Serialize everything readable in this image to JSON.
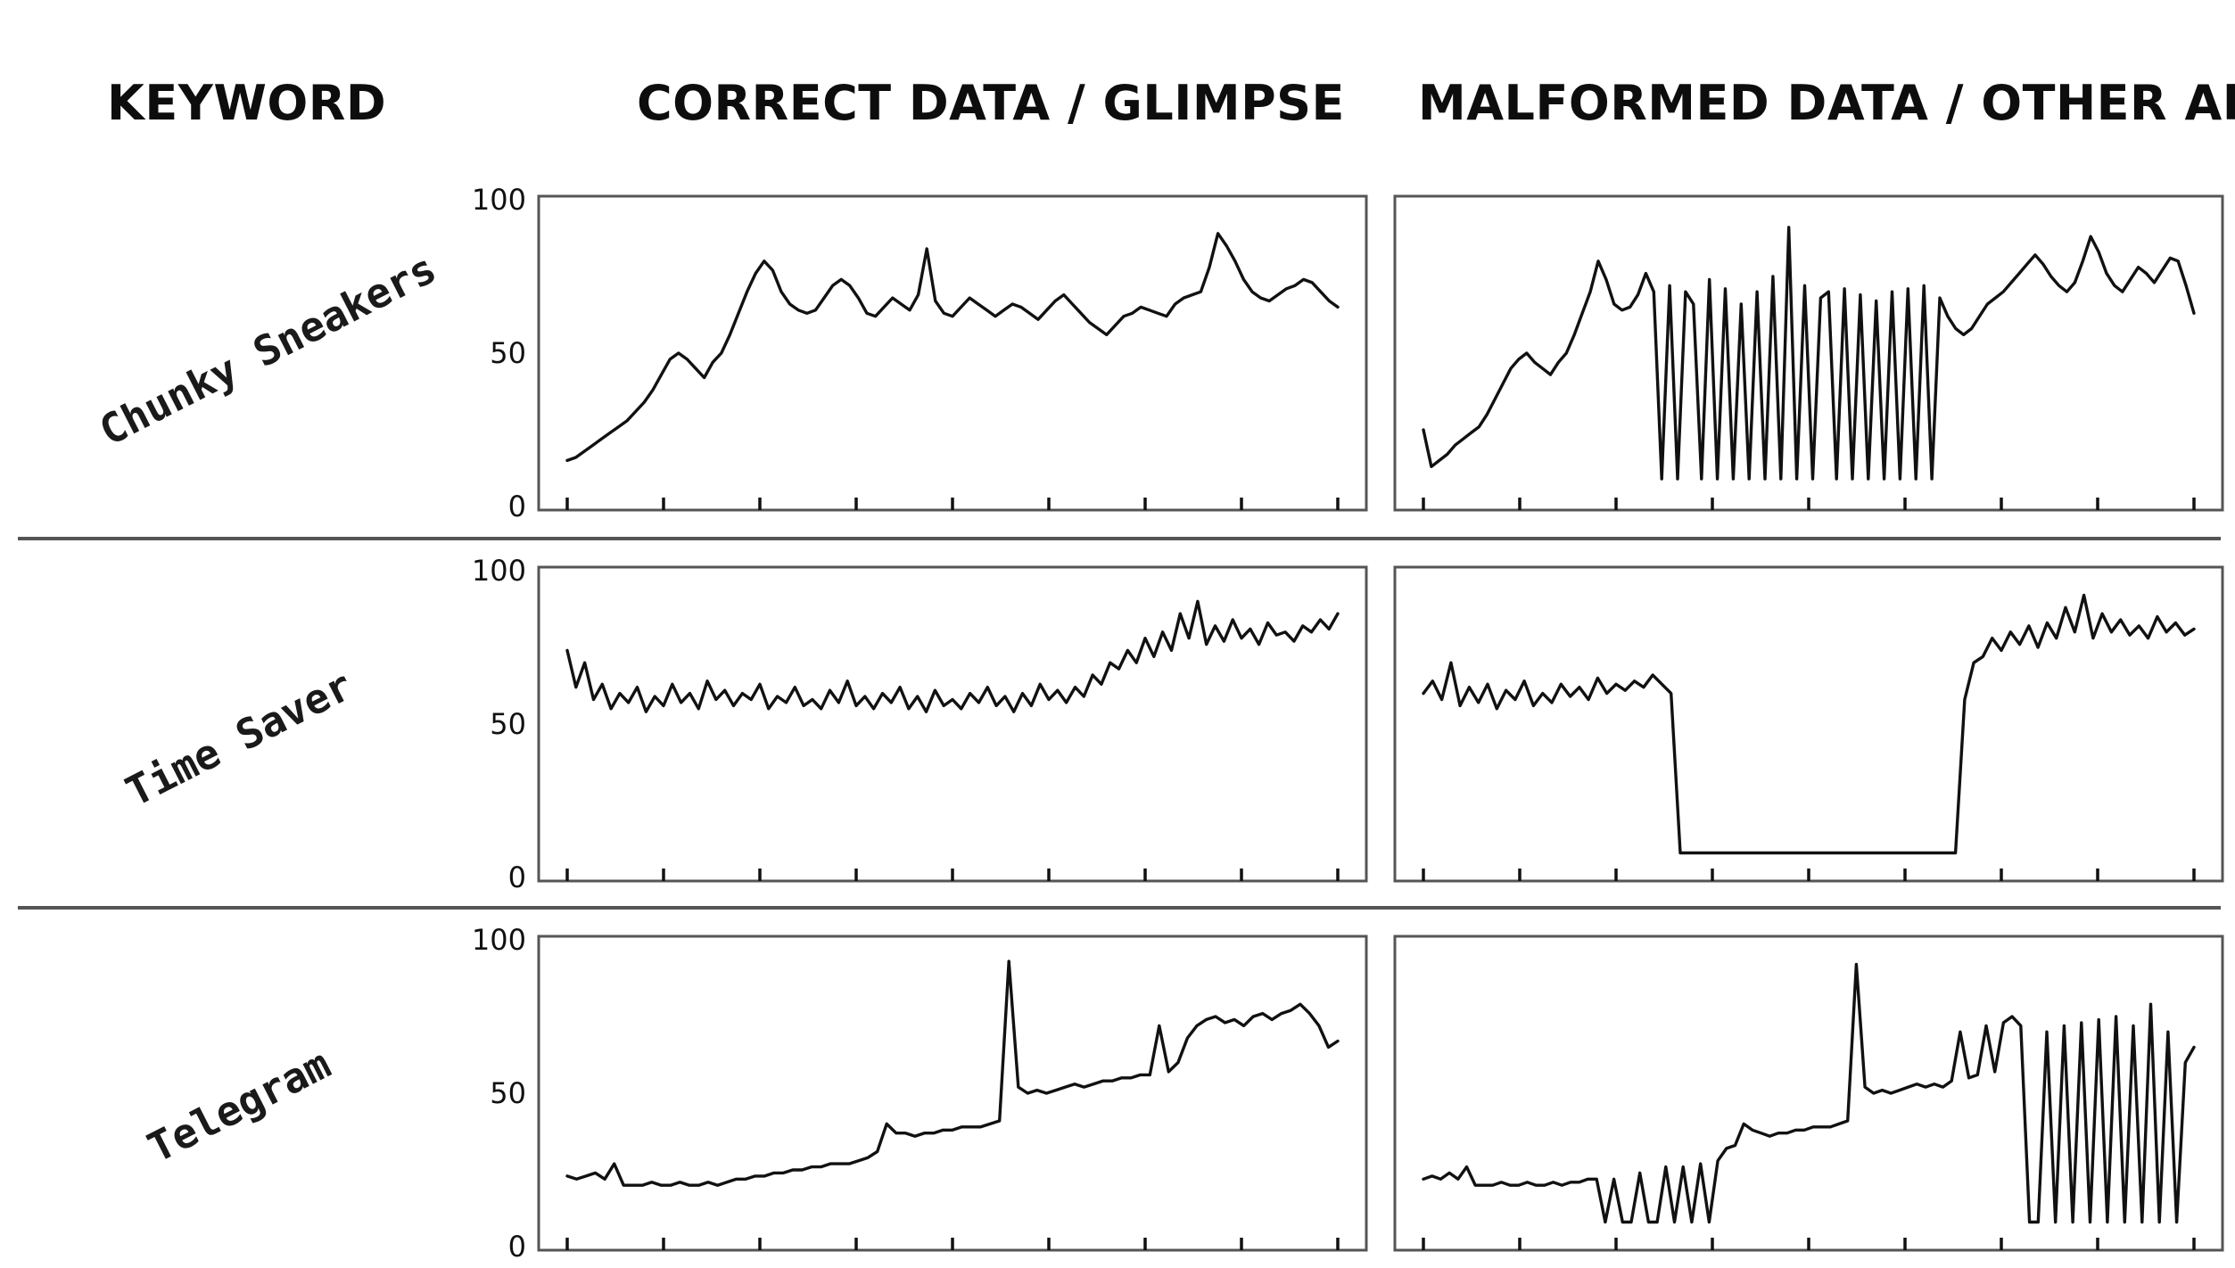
{
  "headers": {
    "keyword": "KEYWORD",
    "correct": "CORRECT DATA / GLIMPSE",
    "malformed": "MALFORMED DATA / OTHER APIs"
  },
  "keywords": [
    "Chunky Sneakers",
    "Time Saver",
    "Telegram"
  ],
  "chart_data": [
    {
      "type": "line",
      "keyword": "Chunky Sneakers",
      "column": "CORRECT DATA / GLIMPSE",
      "ylim": [
        0,
        100
      ],
      "yticks": [
        0,
        50,
        100
      ],
      "x_tick_count": 9,
      "grid": false,
      "values": [
        15,
        16,
        18,
        20,
        22,
        24,
        26,
        28,
        31,
        34,
        38,
        43,
        48,
        50,
        48,
        45,
        42,
        47,
        50,
        56,
        63,
        70,
        76,
        80,
        77,
        70,
        66,
        64,
        63,
        64,
        68,
        72,
        74,
        72,
        68,
        63,
        62,
        65,
        68,
        66,
        64,
        69,
        84,
        67,
        63,
        62,
        65,
        68,
        66,
        64,
        62,
        64,
        66,
        65,
        63,
        61,
        64,
        67,
        69,
        66,
        63,
        60,
        58,
        56,
        59,
        62,
        63,
        65,
        64,
        63,
        62,
        66,
        68,
        69,
        70,
        78,
        89,
        85,
        80,
        74,
        70,
        68,
        67,
        69,
        71,
        72,
        74,
        73,
        70,
        67,
        65
      ]
    },
    {
      "type": "line",
      "keyword": "Chunky Sneakers",
      "column": "MALFORMED DATA / OTHER APIs",
      "ylim": [
        0,
        100
      ],
      "yticks": [
        0,
        50,
        100
      ],
      "x_tick_count": 9,
      "grid": false,
      "values": [
        25,
        13,
        15,
        17,
        20,
        22,
        24,
        26,
        30,
        35,
        40,
        45,
        48,
        50,
        47,
        45,
        43,
        47,
        50,
        56,
        63,
        70,
        80,
        74,
        66,
        64,
        65,
        69,
        76,
        70,
        9,
        72,
        9,
        70,
        66,
        9,
        74,
        9,
        71,
        9,
        66,
        9,
        70,
        9,
        75,
        9,
        91,
        9,
        72,
        9,
        68,
        70,
        9,
        71,
        9,
        69,
        9,
        67,
        9,
        70,
        9,
        71,
        9,
        72,
        9,
        68,
        62,
        58,
        56,
        58,
        62,
        66,
        68,
        70,
        73,
        76,
        79,
        82,
        79,
        75,
        72,
        70,
        73,
        80,
        88,
        83,
        76,
        72,
        70,
        74,
        78,
        76,
        73,
        77,
        81,
        80,
        72,
        63
      ]
    },
    {
      "type": "line",
      "keyword": "Time Saver",
      "column": "CORRECT DATA / GLIMPSE",
      "ylim": [
        0,
        100
      ],
      "yticks": [
        0,
        50,
        100
      ],
      "x_tick_count": 9,
      "grid": false,
      "values": [
        74,
        62,
        70,
        58,
        63,
        55,
        60,
        57,
        62,
        54,
        59,
        56,
        63,
        57,
        60,
        55,
        64,
        58,
        61,
        56,
        60,
        58,
        63,
        55,
        59,
        57,
        62,
        56,
        58,
        55,
        61,
        57,
        64,
        56,
        59,
        55,
        60,
        57,
        62,
        55,
        59,
        54,
        61,
        56,
        58,
        55,
        60,
        57,
        62,
        56,
        59,
        54,
        60,
        56,
        63,
        58,
        61,
        57,
        62,
        59,
        66,
        63,
        70,
        68,
        74,
        70,
        78,
        72,
        80,
        74,
        86,
        78,
        90,
        76,
        82,
        77,
        84,
        78,
        81,
        76,
        83,
        79,
        80,
        77,
        82,
        80,
        84,
        81,
        86
      ]
    },
    {
      "type": "line",
      "keyword": "Time Saver",
      "column": "MALFORMED DATA / OTHER APIs",
      "ylim": [
        0,
        100
      ],
      "yticks": [
        0,
        50,
        100
      ],
      "x_tick_count": 9,
      "grid": false,
      "values": [
        60,
        64,
        58,
        70,
        56,
        62,
        57,
        63,
        55,
        61,
        58,
        64,
        56,
        60,
        57,
        63,
        59,
        62,
        58,
        65,
        60,
        63,
        61,
        64,
        62,
        66,
        63,
        60,
        8,
        8,
        8,
        8,
        8,
        8,
        8,
        8,
        8,
        8,
        8,
        8,
        8,
        8,
        8,
        8,
        8,
        8,
        8,
        8,
        8,
        8,
        8,
        8,
        8,
        8,
        8,
        8,
        8,
        8,
        8,
        58,
        70,
        72,
        78,
        74,
        80,
        76,
        82,
        75,
        83,
        78,
        88,
        80,
        92,
        78,
        86,
        80,
        84,
        79,
        82,
        78,
        85,
        80,
        83,
        79,
        81
      ]
    },
    {
      "type": "line",
      "keyword": "Telegram",
      "column": "CORRECT DATA / GLIMPSE",
      "ylim": [
        0,
        100
      ],
      "yticks": [
        0,
        50,
        100
      ],
      "x_tick_count": 9,
      "grid": false,
      "values": [
        23,
        22,
        23,
        24,
        22,
        27,
        20,
        20,
        20,
        21,
        20,
        20,
        21,
        20,
        20,
        21,
        20,
        21,
        22,
        22,
        23,
        23,
        24,
        24,
        25,
        25,
        26,
        26,
        27,
        27,
        27,
        28,
        29,
        31,
        40,
        37,
        37,
        36,
        37,
        37,
        38,
        38,
        39,
        39,
        39,
        40,
        41,
        93,
        52,
        50,
        51,
        50,
        51,
        52,
        53,
        52,
        53,
        54,
        54,
        55,
        55,
        56,
        56,
        72,
        57,
        60,
        68,
        72,
        74,
        75,
        73,
        74,
        72,
        75,
        76,
        74,
        76,
        77,
        79,
        76,
        72,
        65,
        67
      ]
    },
    {
      "type": "line",
      "keyword": "Telegram",
      "column": "MALFORMED DATA / OTHER APIs",
      "ylim": [
        0,
        100
      ],
      "yticks": [
        0,
        50,
        100
      ],
      "x_tick_count": 9,
      "grid": false,
      "values": [
        22,
        23,
        22,
        24,
        22,
        26,
        20,
        20,
        20,
        21,
        20,
        20,
        21,
        20,
        20,
        21,
        20,
        21,
        21,
        22,
        22,
        8,
        22,
        8,
        8,
        24,
        8,
        8,
        26,
        8,
        26,
        8,
        27,
        8,
        28,
        32,
        33,
        40,
        38,
        37,
        36,
        37,
        37,
        38,
        38,
        39,
        39,
        39,
        40,
        41,
        92,
        52,
        50,
        51,
        50,
        51,
        52,
        53,
        52,
        53,
        52,
        54,
        70,
        55,
        56,
        72,
        57,
        73,
        75,
        72,
        8,
        8,
        70,
        8,
        72,
        8,
        73,
        8,
        74,
        8,
        75,
        8,
        72,
        8,
        79,
        8,
        70,
        8,
        60,
        65
      ]
    }
  ]
}
